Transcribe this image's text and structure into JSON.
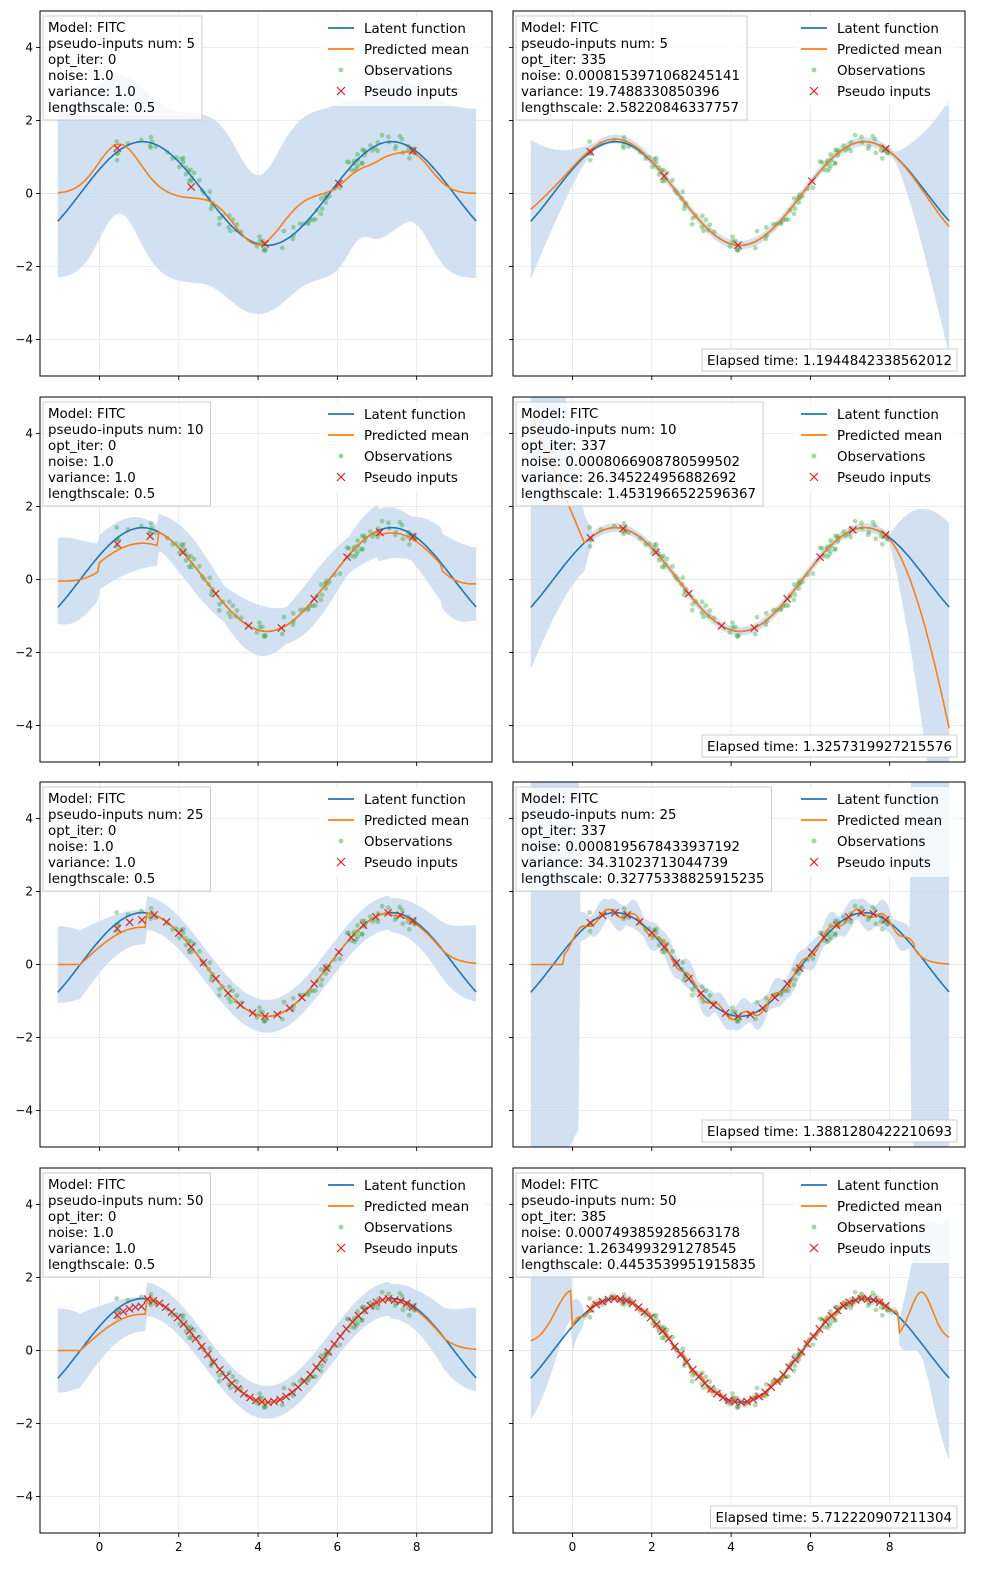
{
  "legend": {
    "latent": "Latent function",
    "mean": "Predicted mean",
    "obs": "Observations",
    "pseudo": "Pseudo inputs"
  },
  "colors": {
    "latent": "#1f77b4",
    "mean": "#ff7f0e",
    "obs": "#2ca02c",
    "pseudo": "#d62728",
    "band": "#c9dcee"
  },
  "chart_data": [
    {
      "type": "line",
      "panel": "1-1",
      "info": [
        "Model: FITC",
        "pseudo-inputs num: 5",
        "opt_iter: 0",
        "noise: 1.0",
        "variance: 1.0",
        "lengthscale: 0.5"
      ],
      "elapsed": "",
      "xlim": [
        -1.5,
        9.9
      ],
      "ylim": [
        -5,
        5
      ],
      "xticks": [
        0,
        2,
        4,
        6,
        8
      ],
      "yticks": [
        -4,
        -2,
        0,
        2,
        4
      ],
      "show_xticklabels": false,
      "show_yticklabels": true,
      "num_pseudo": 5
    },
    {
      "type": "line",
      "panel": "1-2",
      "info": [
        "Model: FITC",
        "pseudo-inputs num: 5",
        "opt_iter: 335",
        "noise: 0.0008153971068245141",
        "variance: 19.7488330850396",
        "lengthscale: 2.58220846337757"
      ],
      "elapsed": "Elapsed time: 1.1944842338562012",
      "xlim": [
        -1.5,
        9.9
      ],
      "ylim": [
        -5,
        5
      ],
      "xticks": [
        0,
        2,
        4,
        6,
        8
      ],
      "yticks": [
        -4,
        -2,
        0,
        2,
        4
      ],
      "show_xticklabels": false,
      "show_yticklabels": false,
      "num_pseudo": 5
    },
    {
      "type": "line",
      "panel": "2-1",
      "info": [
        "Model: FITC",
        "pseudo-inputs num: 10",
        "opt_iter: 0",
        "noise: 1.0",
        "variance: 1.0",
        "lengthscale: 0.5"
      ],
      "elapsed": "",
      "xlim": [
        -1.5,
        9.9
      ],
      "ylim": [
        -5,
        5
      ],
      "xticks": [
        0,
        2,
        4,
        6,
        8
      ],
      "yticks": [
        -4,
        -2,
        0,
        2,
        4
      ],
      "show_xticklabels": false,
      "show_yticklabels": true,
      "num_pseudo": 10
    },
    {
      "type": "line",
      "panel": "2-2",
      "info": [
        "Model: FITC",
        "pseudo-inputs num: 10",
        "opt_iter: 337",
        "noise: 0.0008066908780599502",
        "variance: 26.345224956882692",
        "lengthscale: 1.4531966522596367"
      ],
      "elapsed": "Elapsed time: 1.3257319927215576",
      "xlim": [
        -1.5,
        9.9
      ],
      "ylim": [
        -5,
        5
      ],
      "xticks": [
        0,
        2,
        4,
        6,
        8
      ],
      "yticks": [
        -4,
        -2,
        0,
        2,
        4
      ],
      "show_xticklabels": false,
      "show_yticklabels": false,
      "num_pseudo": 10
    },
    {
      "type": "line",
      "panel": "3-1",
      "info": [
        "Model: FITC",
        "pseudo-inputs num: 25",
        "opt_iter: 0",
        "noise: 1.0",
        "variance: 1.0",
        "lengthscale: 0.5"
      ],
      "elapsed": "",
      "xlim": [
        -1.5,
        9.9
      ],
      "ylim": [
        -5,
        5
      ],
      "xticks": [
        0,
        2,
        4,
        6,
        8
      ],
      "yticks": [
        -4,
        -2,
        0,
        2,
        4
      ],
      "show_xticklabels": false,
      "show_yticklabels": true,
      "num_pseudo": 25
    },
    {
      "type": "line",
      "panel": "3-2",
      "info": [
        "Model: FITC",
        "pseudo-inputs num: 25",
        "opt_iter: 337",
        "noise: 0.0008195678433937192",
        "variance: 34.31023713044739",
        "lengthscale: 0.32775338825915235"
      ],
      "elapsed": "Elapsed time: 1.3881280422210693",
      "xlim": [
        -1.5,
        9.9
      ],
      "ylim": [
        -5,
        5
      ],
      "xticks": [
        0,
        2,
        4,
        6,
        8
      ],
      "yticks": [
        -4,
        -2,
        0,
        2,
        4
      ],
      "show_xticklabels": false,
      "show_yticklabels": false,
      "num_pseudo": 25
    },
    {
      "type": "line",
      "panel": "4-1",
      "info": [
        "Model: FITC",
        "pseudo-inputs num: 50",
        "opt_iter: 0",
        "noise: 1.0",
        "variance: 1.0",
        "lengthscale: 0.5"
      ],
      "elapsed": "",
      "xlim": [
        -1.5,
        9.9
      ],
      "ylim": [
        -5,
        5
      ],
      "xticks": [
        0,
        2,
        4,
        6,
        8
      ],
      "yticks": [
        -4,
        -2,
        0,
        2,
        4
      ],
      "show_xticklabels": true,
      "show_yticklabels": true,
      "num_pseudo": 50
    },
    {
      "type": "line",
      "panel": "4-2",
      "info": [
        "Model: FITC",
        "pseudo-inputs num: 50",
        "opt_iter: 385",
        "noise: 0.0007493859285663178",
        "variance: 1.2634993291278545",
        "lengthscale: 0.4453539951915835"
      ],
      "elapsed": "Elapsed time: 5.712220907211304",
      "xlim": [
        -1.5,
        9.9
      ],
      "ylim": [
        -5,
        5
      ],
      "xticks": [
        0,
        2,
        4,
        6,
        8
      ],
      "yticks": [
        -4,
        -2,
        0,
        2,
        4
      ],
      "show_xticklabels": true,
      "show_yticklabels": false,
      "num_pseudo": 50
    }
  ]
}
